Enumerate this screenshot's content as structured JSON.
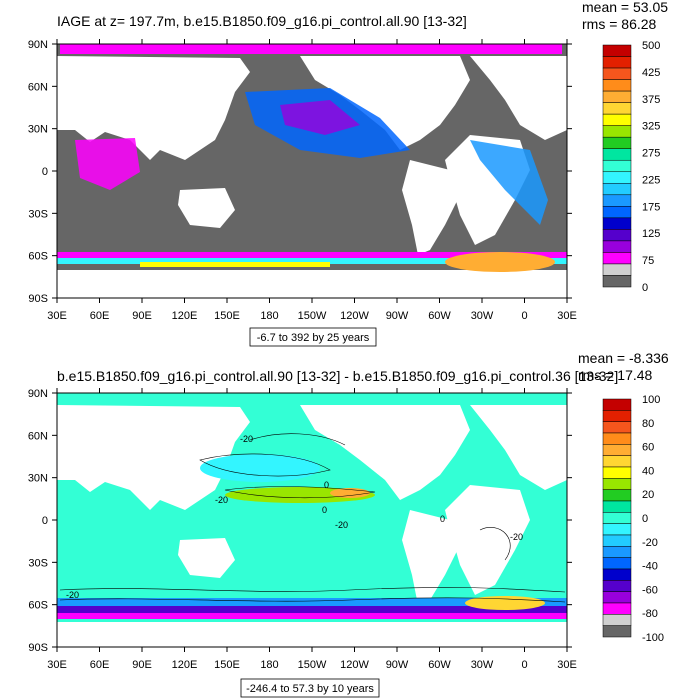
{
  "chart_data": [
    {
      "type": "heatmap",
      "title": "IAGE at z= 197.7m, b.e15.B1850.f09_g16.pi_control.all.90 [13-32]",
      "mean_label": "mean = 53.05",
      "rms_label": "rms = 86.28",
      "range_label": "-6.7 to 392 by 25 years",
      "x_ticks": [
        "30E",
        "60E",
        "90E",
        "120E",
        "150E",
        "180",
        "150W",
        "120W",
        "90W",
        "60W",
        "30W",
        "0",
        "30E"
      ],
      "y_ticks": [
        "90N",
        "60N",
        "30N",
        "0",
        "30S",
        "60S",
        "90S"
      ],
      "colorbar": {
        "labels": [
          "500",
          "425",
          "375",
          "325",
          "275",
          "225",
          "175",
          "125",
          "75",
          "0"
        ],
        "colors": [
          "#c40000",
          "#e32000",
          "#f5561d",
          "#ff8c1a",
          "#ffad33",
          "#ffd633",
          "#ffff00",
          "#99e600",
          "#22cc22",
          "#00e6a0",
          "#33ffd5",
          "#33f5ff",
          "#22ccff",
          "#1a99ff",
          "#0066ff",
          "#0000cc",
          "#5500cc",
          "#9900dd",
          "#ff00ff",
          "#d0d0d0",
          "#666666"
        ]
      }
    },
    {
      "type": "heatmap",
      "title": "b.e15.B1850.f09_g16.pi_control.all.90 [13-32] - b.e15.B1850.f09_g16.pi_control.36 [13-32]",
      "mean_label": "mean = -8.336",
      "rms_label": "rms = 17.48",
      "range_label": "-246.4 to 57.3 by 10 years",
      "x_ticks": [
        "30E",
        "60E",
        "90E",
        "120E",
        "150E",
        "180",
        "150W",
        "120W",
        "90W",
        "60W",
        "30W",
        "0",
        "30E"
      ],
      "y_ticks": [
        "90N",
        "60N",
        "30N",
        "0",
        "30S",
        "60S",
        "90S"
      ],
      "colorbar": {
        "labels": [
          "100",
          "80",
          "60",
          "40",
          "20",
          "0",
          "-20",
          "-40",
          "-60",
          "-80",
          "-100"
        ],
        "colors": [
          "#c40000",
          "#e32000",
          "#f5561d",
          "#ff8c1a",
          "#ffad33",
          "#ffd633",
          "#ffff00",
          "#99e600",
          "#22cc22",
          "#00e6a0",
          "#33ffd5",
          "#33f5ff",
          "#22ccff",
          "#1a99ff",
          "#0066ff",
          "#0000cc",
          "#5500cc",
          "#9900dd",
          "#ff00ff",
          "#d0d0d0",
          "#666666"
        ]
      },
      "contour_labels": [
        "-20",
        "-20",
        "-20",
        "-20",
        "0",
        "0",
        "0",
        "-20"
      ]
    }
  ],
  "colors": {
    "land": "#ffffff",
    "masked_ocean": "#666666",
    "ocean_light": "#33ffd5"
  }
}
